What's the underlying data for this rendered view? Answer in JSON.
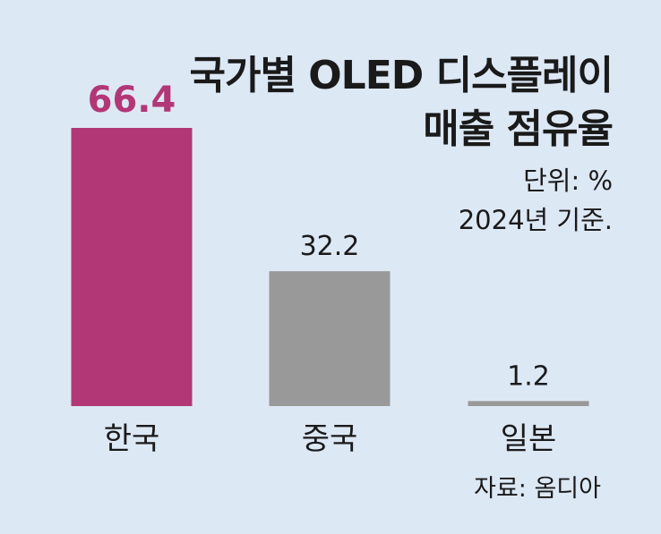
{
  "title_line1": "국가별 OLED 디스플레이",
  "title_line2": "매출 점유율",
  "unit": "단위: %",
  "basis": "2024년 기준.",
  "source": "자료: 옴디아",
  "chart_data": {
    "type": "bar",
    "categories": [
      "한국",
      "중국",
      "일본"
    ],
    "values": [
      66.4,
      32.2,
      1.2
    ],
    "value_labels": [
      "66.4",
      "32.2",
      "1.2"
    ],
    "colors": [
      "#b23777",
      "#999999",
      "#999999"
    ],
    "value_label_colors": [
      "#b23777",
      "#1a1a1a",
      "#1a1a1a"
    ],
    "title": "국가별 OLED 디스플레이 매출 점유율",
    "xlabel": "",
    "ylabel": "",
    "ylim": [
      0,
      66.4
    ],
    "grid": false,
    "legend": "none"
  }
}
